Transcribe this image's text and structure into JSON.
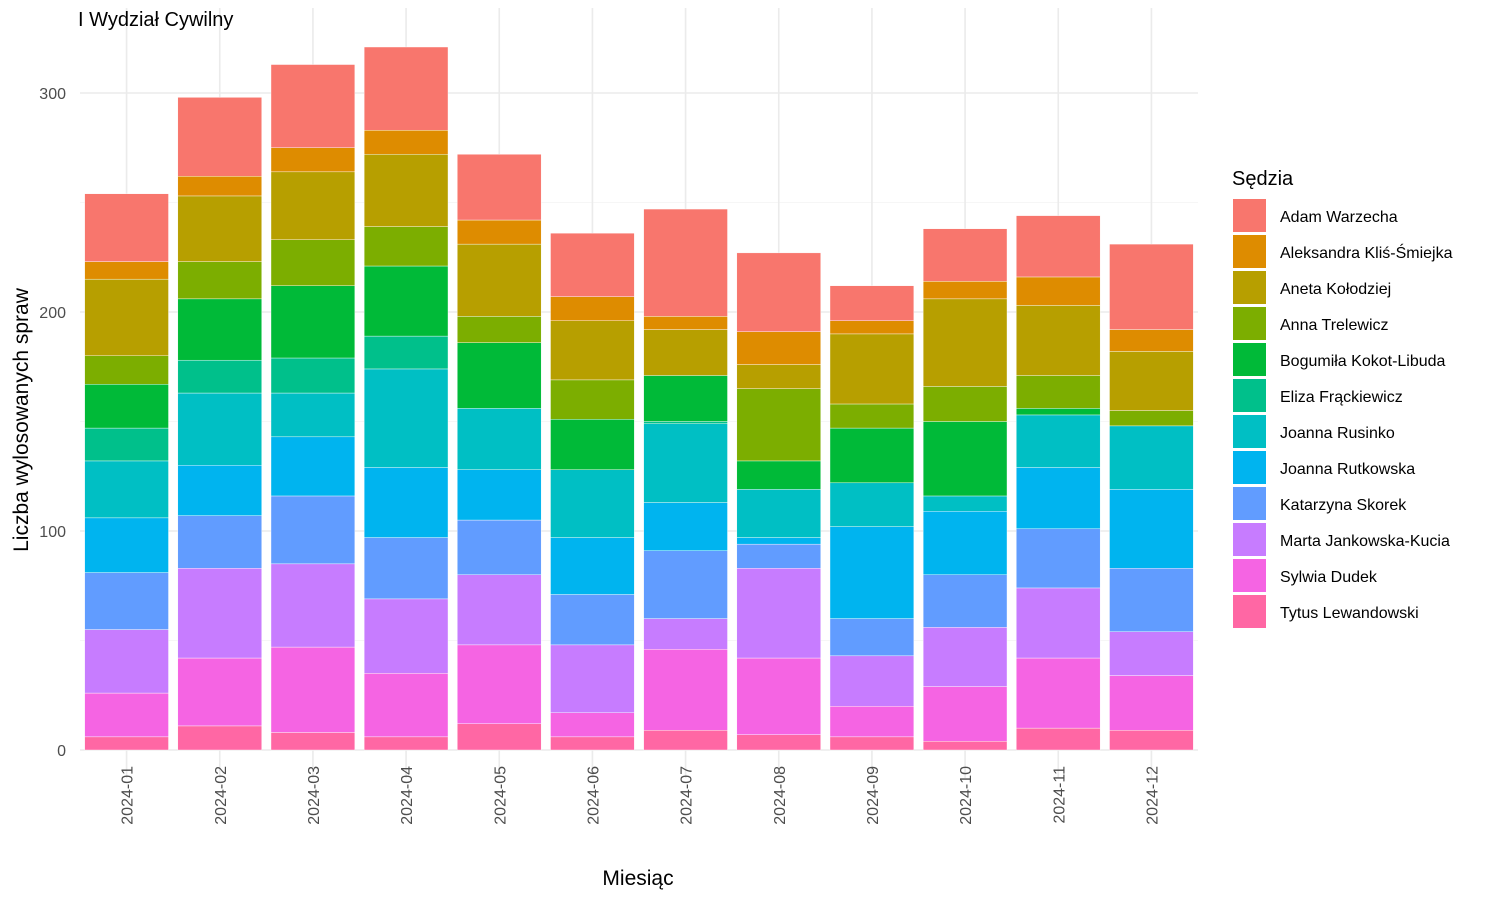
{
  "chart_data": {
    "type": "bar",
    "stacked": true,
    "title": "I Wydział Cywilny",
    "xlabel": "Miesiąc",
    "ylabel": "Liczba wylosowanych spraw",
    "ylim": [
      0,
      320
    ],
    "y_ticks": [
      0,
      100,
      200,
      300
    ],
    "grid": true,
    "legend_title": "Sędzia",
    "legend_position": "right",
    "categories": [
      "2024-01",
      "2024-02",
      "2024-03",
      "2024-04",
      "2024-05",
      "2024-06",
      "2024-07",
      "2024-08",
      "2024-09",
      "2024-10",
      "2024-11",
      "2024-12"
    ],
    "series": [
      {
        "name": "Tytus Lewandowski",
        "color": "#FF67A4",
        "values": [
          6,
          11,
          8,
          6,
          12,
          6,
          9,
          7,
          6,
          4,
          10,
          9
        ]
      },
      {
        "name": "Sylwia Dudek",
        "color": "#F564E3",
        "values": [
          20,
          31,
          39,
          29,
          36,
          11,
          37,
          35,
          14,
          25,
          32,
          25
        ]
      },
      {
        "name": "Marta Jankowska-Kucia",
        "color": "#C77CFF",
        "values": [
          29,
          41,
          38,
          34,
          32,
          31,
          14,
          41,
          23,
          27,
          32,
          20
        ]
      },
      {
        "name": "Katarzyna Skorek",
        "color": "#619CFF",
        "values": [
          26,
          24,
          31,
          28,
          25,
          23,
          31,
          11,
          17,
          24,
          27,
          29
        ]
      },
      {
        "name": "Joanna Rutkowska",
        "color": "#00B4EF",
        "values": [
          25,
          23,
          27,
          32,
          23,
          26,
          22,
          3,
          42,
          29,
          28,
          36
        ]
      },
      {
        "name": "Joanna Rusinko",
        "color": "#00BFC4",
        "values": [
          26,
          33,
          20,
          45,
          28,
          31,
          36,
          22,
          20,
          7,
          24,
          29
        ]
      },
      {
        "name": "Eliza Frąckiewicz",
        "color": "#00C08B",
        "values": [
          15,
          15,
          16,
          15,
          0,
          0,
          1,
          0,
          0,
          0,
          0,
          0
        ]
      },
      {
        "name": "Bogumiła Kokot-Libuda",
        "color": "#00BA38",
        "values": [
          20,
          28,
          33,
          32,
          30,
          23,
          21,
          13,
          25,
          34,
          3,
          0
        ]
      },
      {
        "name": "Anna Trelewicz",
        "color": "#7CAE00",
        "values": [
          13,
          17,
          21,
          18,
          12,
          18,
          0,
          33,
          11,
          16,
          15,
          7
        ]
      },
      {
        "name": "Aneta Kołodziej",
        "color": "#B79F00",
        "values": [
          35,
          30,
          31,
          33,
          33,
          27,
          21,
          11,
          32,
          40,
          32,
          27
        ]
      },
      {
        "name": "Aleksandra Kliś-Śmiejka",
        "color": "#DE8C00",
        "values": [
          8,
          9,
          11,
          11,
          11,
          11,
          6,
          15,
          6,
          8,
          13,
          10
        ]
      },
      {
        "name": "Adam Warzecha",
        "color": "#F8766D",
        "values": [
          31,
          36,
          38,
          38,
          30,
          29,
          49,
          36,
          16,
          24,
          28,
          39
        ]
      }
    ]
  }
}
